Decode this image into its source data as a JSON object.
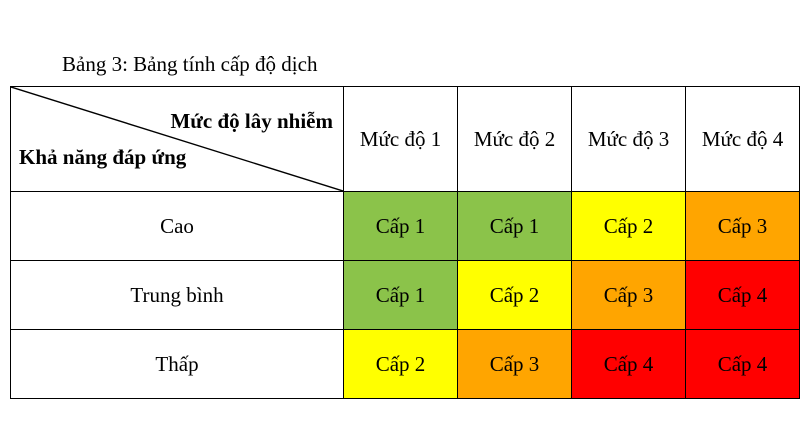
{
  "caption": "Bảng 3: Bảng tính cấp độ dịch",
  "header": {
    "top_label": "Mức độ lây nhiễm",
    "bottom_label": "Khả năng đáp ứng",
    "levels": [
      "Mức độ 1",
      "Mức độ  2",
      "Mức độ  3",
      "Mức độ 4"
    ]
  },
  "rows": [
    {
      "label": "Cao",
      "cells": [
        "Cấp 1",
        "Cấp 1",
        "Cấp 2",
        "Cấp 3"
      ],
      "colors": [
        "#8bc34a",
        "#8bc34a",
        "#ffff00",
        "#ffa500"
      ]
    },
    {
      "label": "Trung bình",
      "cells": [
        "Cấp 1",
        "Cấp 2",
        "Cấp 3",
        "Cấp 4"
      ],
      "colors": [
        "#8bc34a",
        "#ffff00",
        "#ffa500",
        "#ff0000"
      ]
    },
    {
      "label": "Thấp",
      "cells": [
        "Cấp 2",
        "Cấp 3",
        "Cấp 4",
        "Cấp 4"
      ],
      "colors": [
        "#ffff00",
        "#ffa500",
        "#ff0000",
        "#ff0000"
      ]
    }
  ]
}
